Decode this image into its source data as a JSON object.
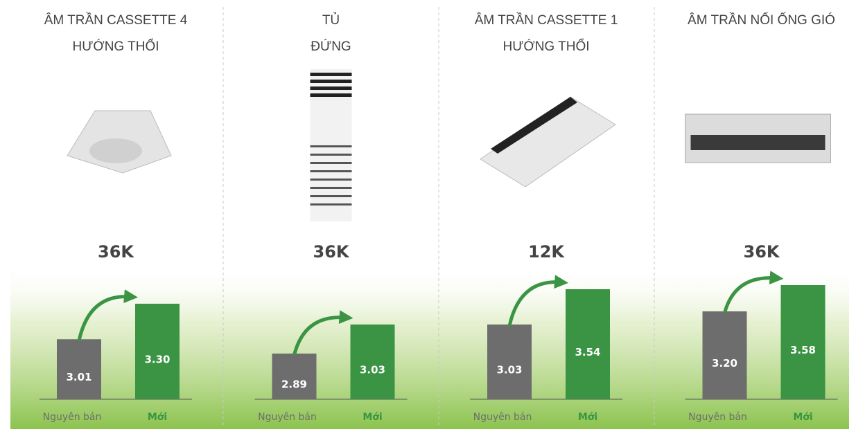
{
  "chart_data": [
    {
      "type": "bar",
      "title": [
        "ÂM TRẦN CASSETTE 4",
        "HƯỚNG THỔI"
      ],
      "subtitle": "36K",
      "categories": [
        "Nguyên bản",
        "Mới"
      ],
      "values": [
        3.01,
        3.3
      ],
      "value_labels": [
        "3.01",
        "3.30"
      ],
      "colors": [
        "#6d6d6d",
        "#3a9444"
      ],
      "ylim": [
        2.52,
        3.52
      ]
    },
    {
      "type": "bar",
      "title": [
        "TỦ",
        "ĐỨNG"
      ],
      "subtitle": "36K",
      "categories": [
        "Nguyên bản",
        "Mới"
      ],
      "values": [
        2.89,
        3.03
      ],
      "value_labels": [
        "2.89",
        "3.03"
      ],
      "colors": [
        "#6d6d6d",
        "#3a9444"
      ],
      "ylim": [
        2.67,
        3.26
      ]
    },
    {
      "type": "bar",
      "title": [
        "ÂM TRẦN CASSETTE 1",
        "HƯỚNG THỔI"
      ],
      "subtitle": "12K",
      "categories": [
        "Nguyên bản",
        "Mới"
      ],
      "values": [
        3.03,
        3.54
      ],
      "value_labels": [
        "3.03",
        "3.54"
      ],
      "colors": [
        "#6d6d6d",
        "#3a9444"
      ],
      "ylim": [
        1.95,
        3.72
      ]
    },
    {
      "type": "bar",
      "title": [
        "ÂM TRẦN NỐI ỐNG GIÓ"
      ],
      "subtitle": "36K",
      "categories": [
        "Nguyên bản",
        "Mới"
      ],
      "values": [
        3.2,
        3.58
      ],
      "value_labels": [
        "3.20",
        "3.58"
      ],
      "colors": [
        "#6d6d6d",
        "#3a9444"
      ],
      "ylim": [
        1.93,
        3.7
      ]
    }
  ]
}
